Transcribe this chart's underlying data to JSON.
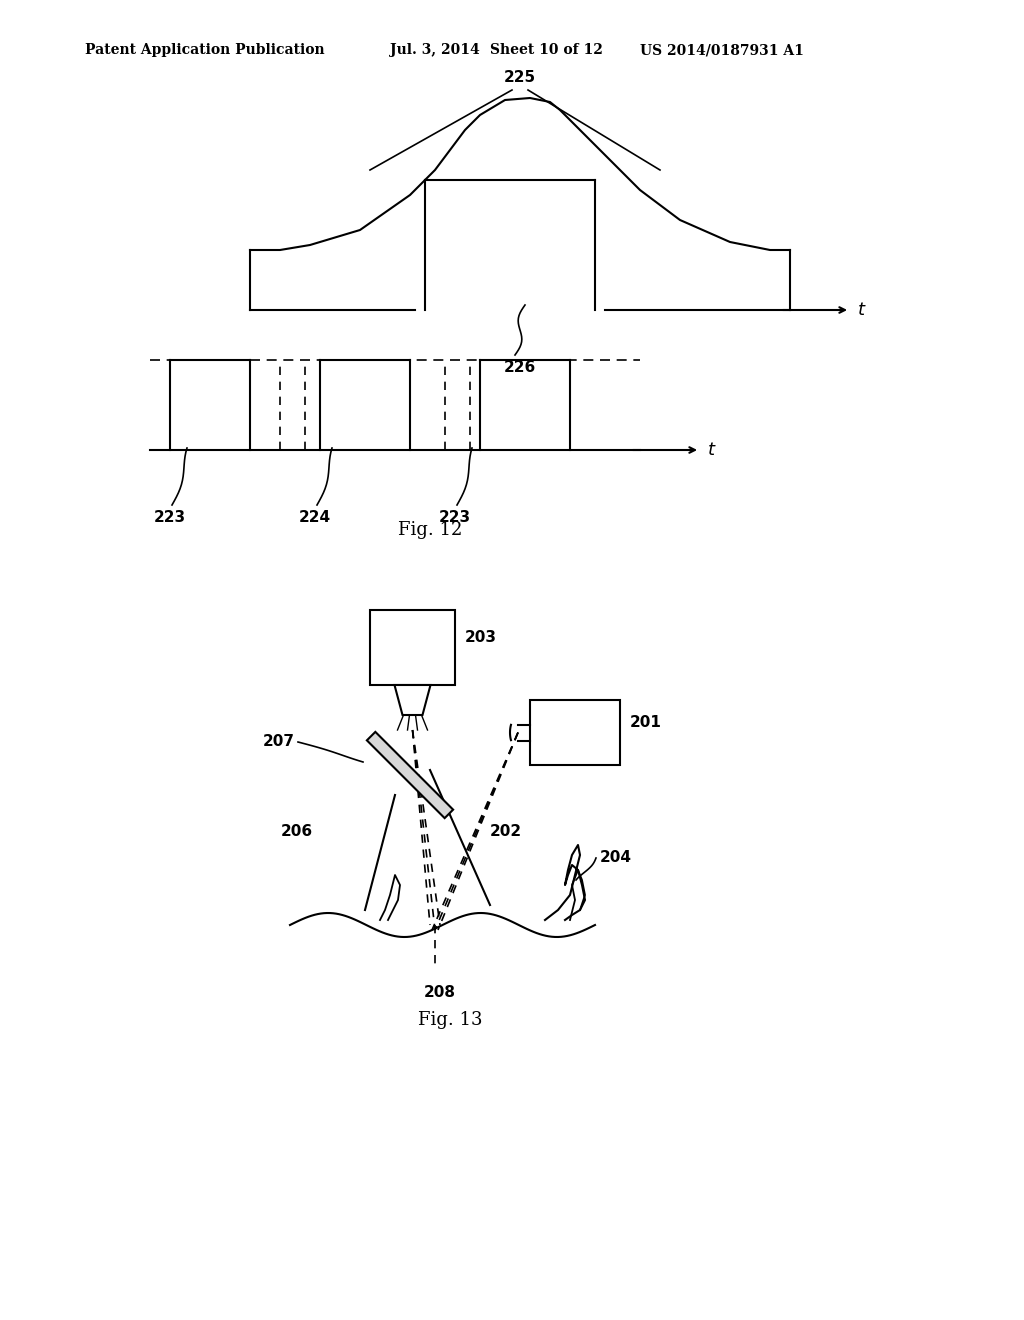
{
  "bg_color": "#ffffff",
  "header_text": "Patent Application Publication",
  "header_date": "Jul. 3, 2014",
  "header_sheet": "Sheet 10 of 12",
  "header_patent": "US 2014/0187931 A1",
  "fig12_label": "Fig. 12",
  "fig13_label": "Fig. 13",
  "label_225": "225",
  "label_226": "226",
  "label_223a": "223",
  "label_224": "224",
  "label_223b": "223",
  "label_201": "201",
  "label_202": "202",
  "label_203": "203",
  "label_204": "204",
  "label_206": "206",
  "label_207": "207",
  "label_208": "208"
}
